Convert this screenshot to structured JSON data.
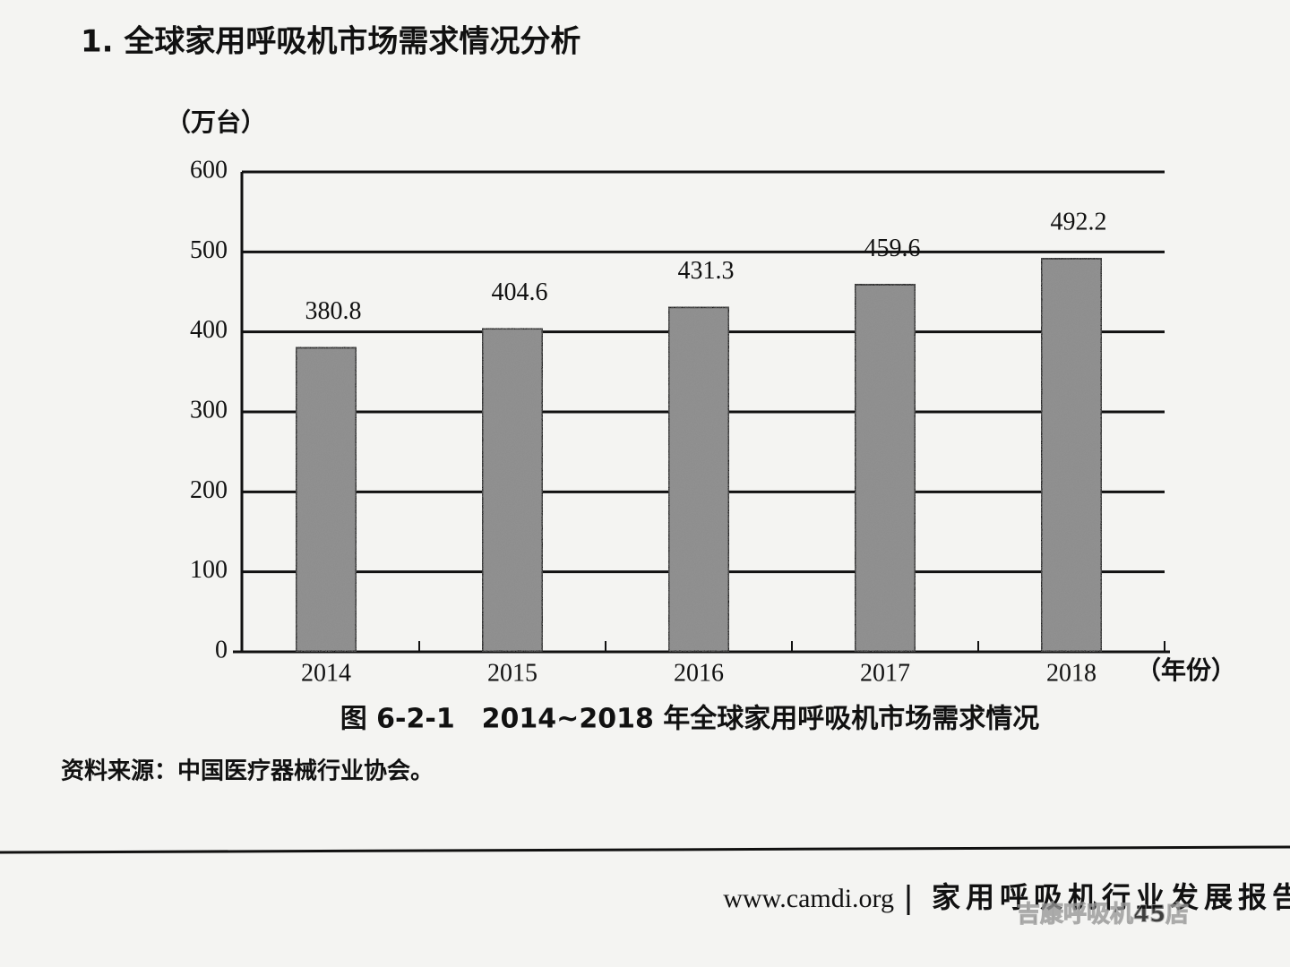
{
  "heading": "1. 全球家用呼吸机市场需求情况分析",
  "chart_data": {
    "type": "bar",
    "y_label": "（万台）",
    "x_label": "（年份）",
    "title": "图 6-2-1　2014~2018 年全球家用呼吸机市场需求情况",
    "categories": [
      "2014",
      "2015",
      "2016",
      "2017",
      "2018"
    ],
    "values": [
      380.8,
      404.6,
      431.3,
      459.6,
      492.2
    ],
    "color": "#8e8e8e",
    "ylim": [
      0,
      600
    ],
    "yticks": [
      0,
      100,
      200,
      300,
      400,
      500,
      600
    ],
    "grid": true
  },
  "source": "资料来源：中国医疗器械行业协会。",
  "footer": {
    "url": "www.camdi.org",
    "report": "家用呼吸机行业发展报告",
    "watermark": "吉康呼吸机45店"
  }
}
